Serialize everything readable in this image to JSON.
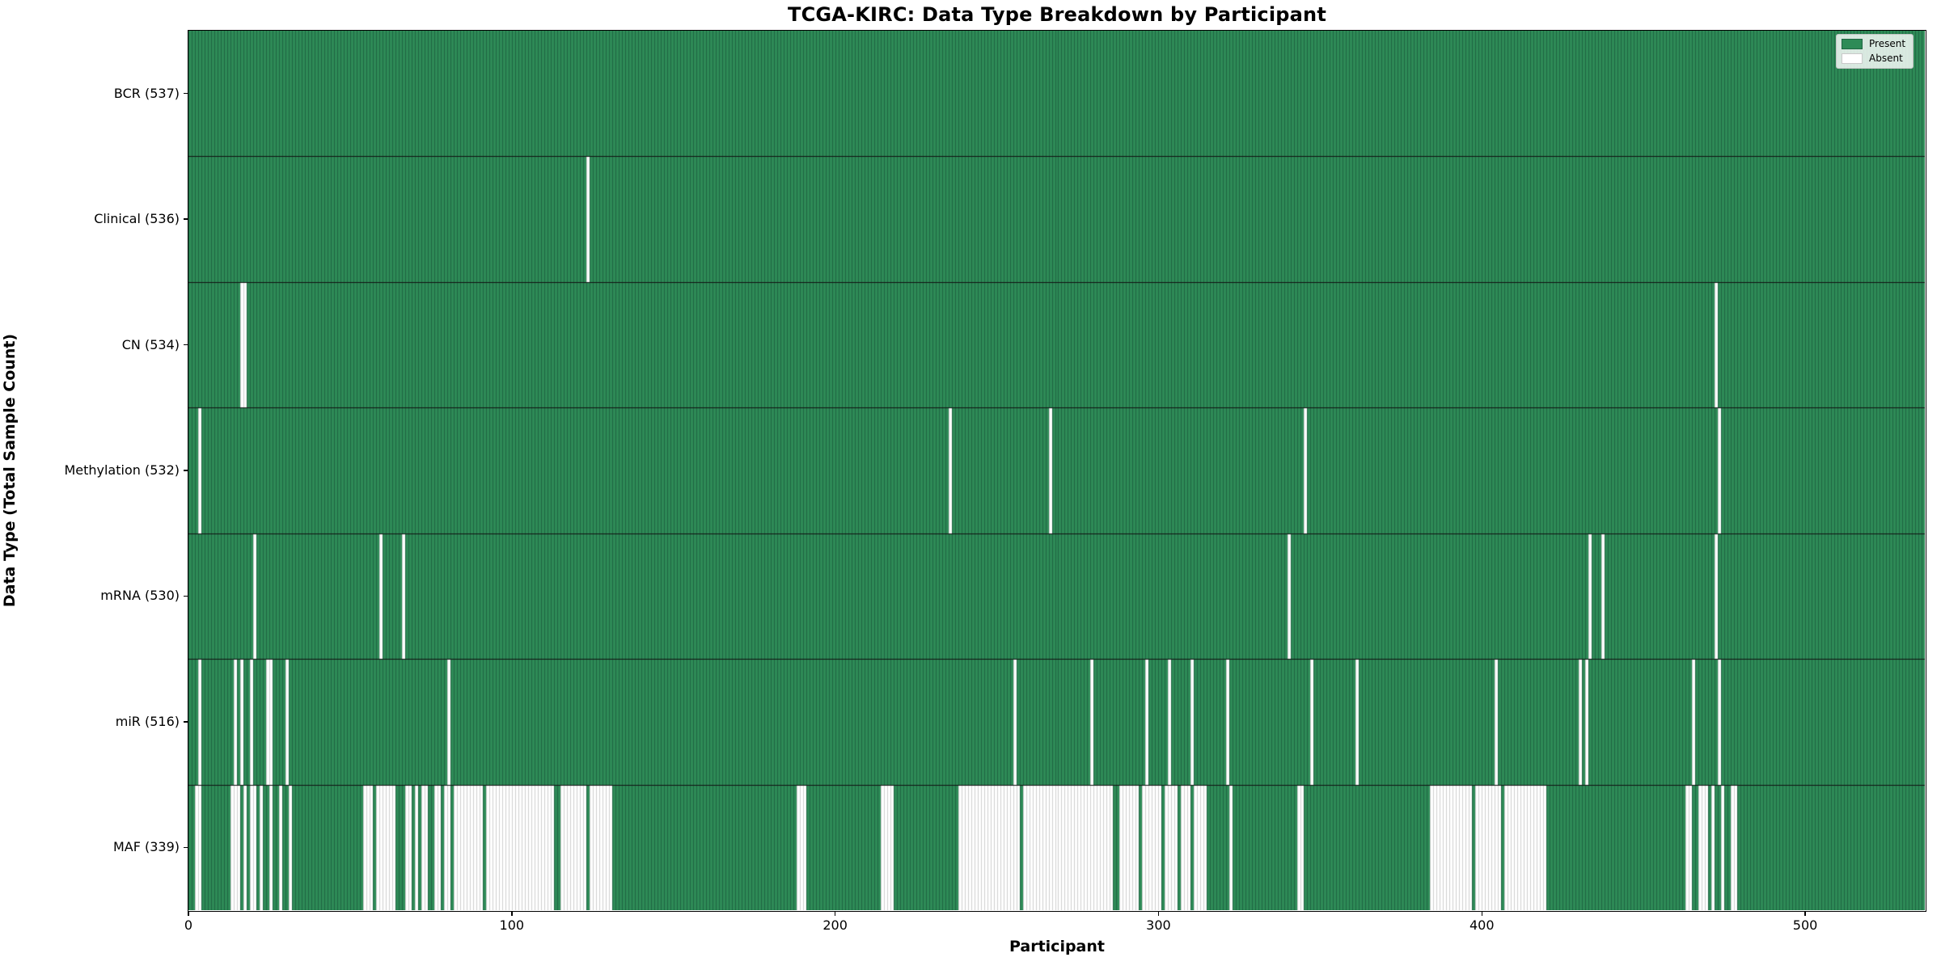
{
  "title": "TCGA-KIRC: Data Type Breakdown by Participant",
  "axes": {
    "x_label": "Participant",
    "y_label": "Data Type (Total Sample Count)",
    "x_ticks": [
      0,
      100,
      200,
      300,
      400,
      500
    ]
  },
  "legend": {
    "items": [
      {
        "label": "Present",
        "color": "#2e8b57",
        "edge": "#1f6542"
      },
      {
        "label": "Absent",
        "color": "#ffffff",
        "edge": "#c9c9c9"
      }
    ]
  },
  "chart_data": {
    "type": "heatmap",
    "title": "TCGA-KIRC: Data Type Breakdown by Participant",
    "xlabel": "Participant",
    "ylabel": "Data Type (Total Sample Count)",
    "n_participants": 537,
    "x_range": [
      0,
      537
    ],
    "x_ticks": [
      0,
      100,
      200,
      300,
      400,
      500
    ],
    "legend_position": "upper right",
    "grid": false,
    "value_encoding": {
      "present": "green bar",
      "absent": "white bar"
    },
    "colors": {
      "present": "#2e8b57",
      "present_edge": "#1f6542",
      "absent": "#ffffff",
      "absent_edge": "#cfcfcf",
      "row_separator": "#111111",
      "plot_border": "#000000"
    },
    "rows": [
      {
        "name": "BCR",
        "label": "BCR (537)",
        "total": 537,
        "absent_ranges": []
      },
      {
        "name": "Clinical",
        "label": "Clinical (536)",
        "total": 536,
        "absent_ranges": [
          [
            123,
            123
          ]
        ]
      },
      {
        "name": "CN",
        "label": "CN (534)",
        "total": 534,
        "absent_ranges": [
          [
            16,
            17
          ],
          [
            472,
            472
          ]
        ]
      },
      {
        "name": "Methylation",
        "label": "Methylation (532)",
        "total": 532,
        "absent_ranges": [
          [
            3,
            3
          ],
          [
            235,
            235
          ],
          [
            266,
            266
          ],
          [
            345,
            345
          ],
          [
            473,
            473
          ]
        ]
      },
      {
        "name": "mRNA",
        "label": "mRNA (530)",
        "total": 530,
        "absent_ranges": [
          [
            20,
            20
          ],
          [
            59,
            59
          ],
          [
            66,
            66
          ],
          [
            340,
            340
          ],
          [
            433,
            433
          ],
          [
            437,
            437
          ],
          [
            472,
            472
          ]
        ]
      },
      {
        "name": "miR",
        "label": "miR (516)",
        "total": 516,
        "absent_ranges": [
          [
            3,
            3
          ],
          [
            14,
            14
          ],
          [
            16,
            16
          ],
          [
            19,
            19
          ],
          [
            24,
            25
          ],
          [
            30,
            30
          ],
          [
            80,
            80
          ],
          [
            255,
            255
          ],
          [
            279,
            279
          ],
          [
            296,
            296
          ],
          [
            303,
            303
          ],
          [
            310,
            310
          ],
          [
            321,
            321
          ],
          [
            347,
            347
          ],
          [
            361,
            361
          ],
          [
            404,
            404
          ],
          [
            430,
            430
          ],
          [
            432,
            432
          ],
          [
            465,
            465
          ],
          [
            473,
            473
          ]
        ]
      },
      {
        "name": "MAF",
        "label": "MAF (339)",
        "total": 339,
        "absent_ranges": [
          [
            2,
            3
          ],
          [
            13,
            15
          ],
          [
            17,
            17
          ],
          [
            19,
            20
          ],
          [
            22,
            22
          ],
          [
            25,
            25
          ],
          [
            28,
            28
          ],
          [
            31,
            31
          ],
          [
            54,
            56
          ],
          [
            58,
            63
          ],
          [
            67,
            68
          ],
          [
            70,
            70
          ],
          [
            72,
            73
          ],
          [
            76,
            77
          ],
          [
            79,
            80
          ],
          [
            82,
            90
          ],
          [
            92,
            112
          ],
          [
            115,
            122
          ],
          [
            124,
            130
          ],
          [
            188,
            190
          ],
          [
            214,
            217
          ],
          [
            238,
            256
          ],
          [
            258,
            285
          ],
          [
            288,
            293
          ],
          [
            295,
            300
          ],
          [
            302,
            305
          ],
          [
            307,
            309
          ],
          [
            311,
            314
          ],
          [
            322,
            322
          ],
          [
            343,
            344
          ],
          [
            384,
            396
          ],
          [
            398,
            405
          ],
          [
            407,
            419
          ],
          [
            463,
            464
          ],
          [
            467,
            469
          ],
          [
            471,
            471
          ],
          [
            474,
            474
          ],
          [
            477,
            478
          ]
        ]
      }
    ]
  }
}
